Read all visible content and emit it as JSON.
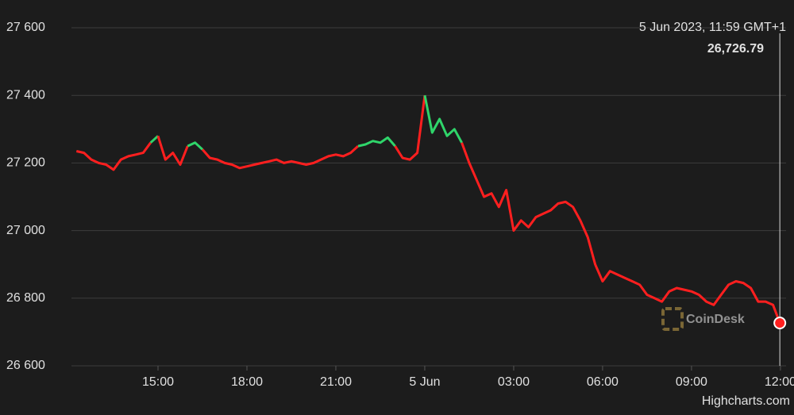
{
  "chart_data": {
    "type": "line",
    "x": [
      12.25,
      12.5,
      12.75,
      13,
      13.25,
      13.5,
      13.75,
      14,
      14.25,
      14.5,
      14.75,
      15,
      15.25,
      15.5,
      15.75,
      16,
      16.25,
      16.5,
      16.75,
      17,
      17.25,
      17.5,
      17.75,
      18,
      18.25,
      18.5,
      18.75,
      19,
      19.25,
      19.5,
      19.75,
      20,
      20.25,
      20.5,
      20.75,
      21,
      21.25,
      21.5,
      21.75,
      22,
      22.25,
      22.5,
      22.75,
      23,
      23.25,
      23.5,
      23.75,
      24,
      24.25,
      24.5,
      24.75,
      25,
      25.25,
      25.5,
      25.75,
      26,
      26.25,
      26.5,
      26.75,
      27,
      27.25,
      27.5,
      27.75,
      28,
      28.25,
      28.5,
      28.75,
      29,
      29.25,
      29.5,
      29.75,
      30,
      30.25,
      30.5,
      30.75,
      31,
      31.25,
      31.5,
      31.75,
      32,
      32.25,
      32.5,
      32.75,
      33,
      33.25,
      33.5,
      33.75,
      34,
      34.25,
      34.5,
      34.75,
      35,
      35.25,
      35.5,
      35.75,
      35.98
    ],
    "values": [
      27235,
      27230,
      27210,
      27200,
      27195,
      27180,
      27210,
      27220,
      27225,
      27230,
      27260,
      27280,
      27210,
      27230,
      27195,
      27250,
      27260,
      27240,
      27215,
      27210,
      27200,
      27195,
      27185,
      27190,
      27195,
      27200,
      27205,
      27210,
      27200,
      27205,
      27200,
      27195,
      27200,
      27210,
      27220,
      27225,
      27220,
      27230,
      27250,
      27255,
      27265,
      27260,
      27275,
      27250,
      27215,
      27210,
      27230,
      27400,
      27290,
      27330,
      27280,
      27300,
      27260,
      27200,
      27150,
      27100,
      27110,
      27070,
      27120,
      27000,
      27030,
      27010,
      27040,
      27050,
      27060,
      27080,
      27085,
      27070,
      27030,
      26980,
      26900,
      26850,
      26880,
      26870,
      26860,
      26850,
      26840,
      26810,
      26800,
      26790,
      26820,
      26830,
      26825,
      26820,
      26810,
      26790,
      26780,
      26810,
      26840,
      26850,
      26845,
      26830,
      26790,
      26790,
      26780,
      26726.79
    ],
    "color": "#ff1f1f",
    "up_color": "#2fd56a",
    "xlim": [
      12.08,
      36.19
    ],
    "xticks": [
      {
        "value": 15,
        "label": "15:00"
      },
      {
        "value": 18,
        "label": "18:00"
      },
      {
        "value": 21,
        "label": "21:00"
      },
      {
        "value": 24,
        "label": "5 Jun"
      },
      {
        "value": 27,
        "label": "03:00"
      },
      {
        "value": 30,
        "label": "06:00"
      },
      {
        "value": 33,
        "label": "09:00"
      },
      {
        "value": 36,
        "label": "12:00"
      }
    ],
    "ylim": [
      26600,
      27600
    ],
    "yticks": [
      {
        "value": 26600,
        "label": "26 600"
      },
      {
        "value": 26800,
        "label": "26 800"
      },
      {
        "value": 27000,
        "label": "27 000"
      },
      {
        "value": 27200,
        "label": "27 200"
      },
      {
        "value": 27400,
        "label": "27 400"
      },
      {
        "value": 27600,
        "label": "27 600"
      }
    ],
    "grid": true,
    "tooltip": {
      "date": "5 Jun 2023, 11:59 GMT+1",
      "value": 26726.79,
      "value_label": "26,726.79"
    },
    "watermark": "CoinDesk",
    "credits": "Highcharts.com"
  }
}
